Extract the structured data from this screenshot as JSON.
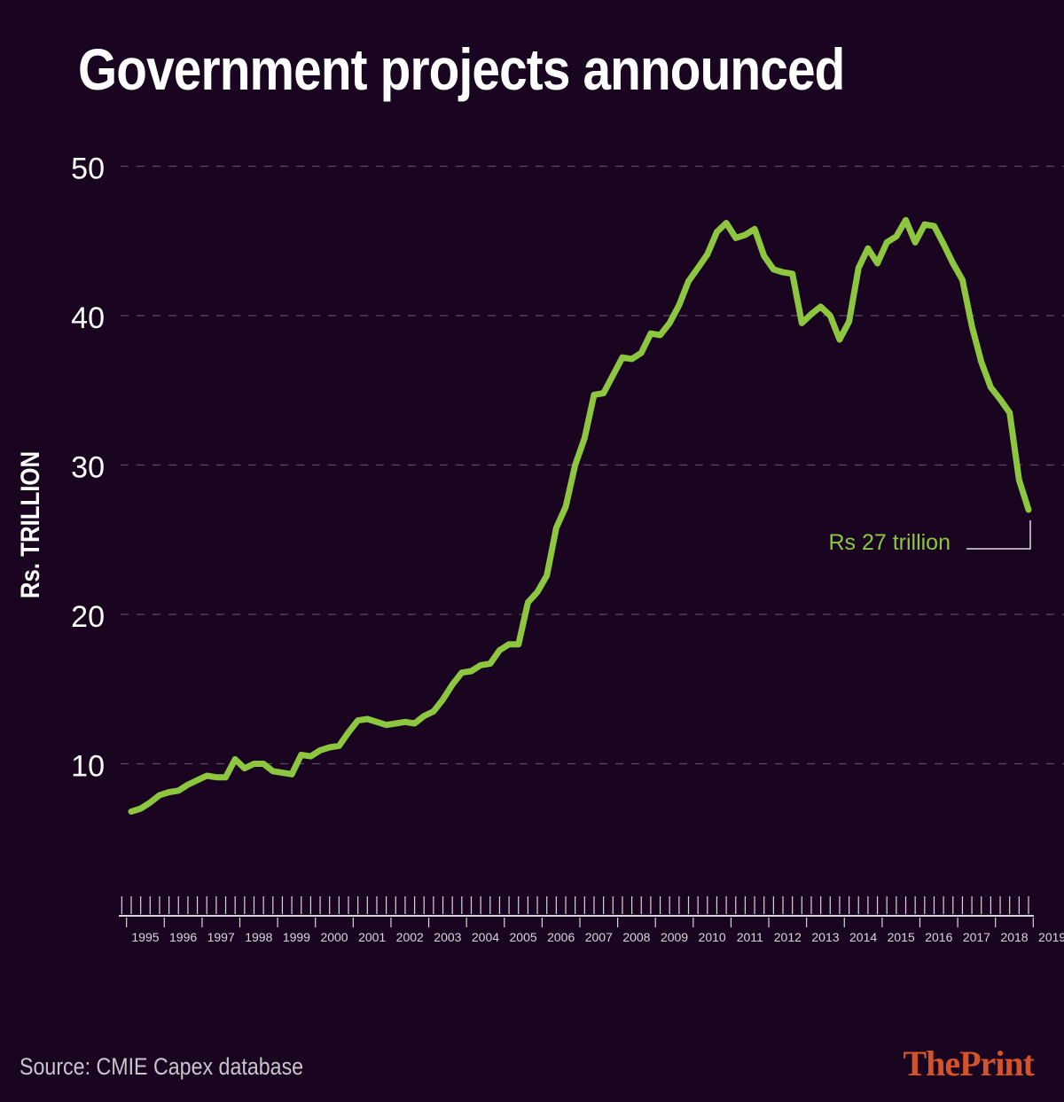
{
  "chart_data": {
    "type": "line",
    "title": "Government projects announced",
    "ylabel": "Rs. TRILLION",
    "xlabel": "",
    "ylim": [
      0,
      50
    ],
    "yticks": [
      10,
      20,
      30,
      40,
      50
    ],
    "grid": true,
    "x_start": 1995,
    "x_end": 2019.75,
    "xtick_labels": [
      "1995",
      "1996",
      "1997",
      "1998",
      "1999",
      "2000",
      "2001",
      "2002",
      "2003",
      "2004",
      "2005",
      "2006",
      "2007",
      "2008",
      "2009",
      "2010",
      "2011",
      "2012",
      "2013",
      "2014",
      "2015",
      "2016",
      "2017",
      "2018",
      "2019"
    ],
    "series": [
      {
        "name": "Government projects announced",
        "color": "#8dc63f",
        "values": [
          6.8,
          7.0,
          7.4,
          7.9,
          8.1,
          8.2,
          8.6,
          8.9,
          9.2,
          9.1,
          9.1,
          10.3,
          9.7,
          10.0,
          10.0,
          9.5,
          9.4,
          9.3,
          10.6,
          10.5,
          10.9,
          11.1,
          11.2,
          12.1,
          12.9,
          13.0,
          12.8,
          12.6,
          12.7,
          12.8,
          12.7,
          13.2,
          13.5,
          14.3,
          15.3,
          16.1,
          16.2,
          16.6,
          16.7,
          17.6,
          18.0,
          18.0,
          20.8,
          21.5,
          22.6,
          25.8,
          27.2,
          30.0,
          31.8,
          34.7,
          34.8,
          36.0,
          37.2,
          37.1,
          37.5,
          38.8,
          38.7,
          39.5,
          40.7,
          42.3,
          43.2,
          44.1,
          45.6,
          46.2,
          45.2,
          45.4,
          45.8,
          44.0,
          43.1,
          42.9,
          42.8,
          39.5,
          40.1,
          40.6,
          40.0,
          38.4,
          39.6,
          43.2,
          44.5,
          43.5,
          44.9,
          45.3,
          46.4,
          44.9,
          46.1,
          46.0,
          44.8,
          43.5,
          42.4,
          39.3,
          36.9,
          35.2,
          34.4,
          33.5,
          29.0,
          27.0
        ]
      }
    ],
    "annotation": {
      "text": "Rs 27 trillion",
      "value": 27
    }
  },
  "footer": {
    "source": "Source: CMIE Capex database",
    "brand_the": "The",
    "brand_print": "Print"
  }
}
